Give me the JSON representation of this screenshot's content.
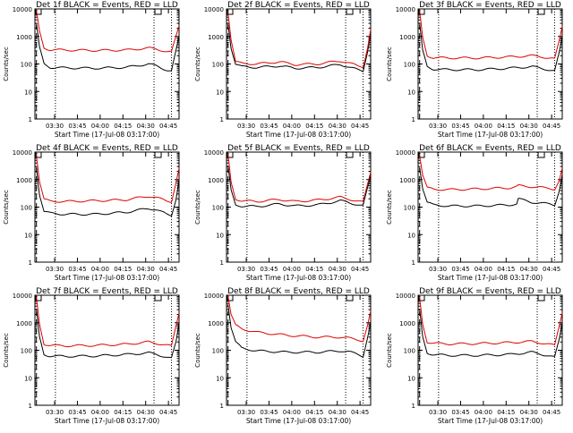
{
  "axes": {
    "ylabel": "Counts/sec",
    "xlabel": "Start Time (17-Jul-08 03:17:00)",
    "yticks": [
      "1",
      "10",
      "100",
      "1000",
      "10000"
    ],
    "xticks": [
      "03:30",
      "03:45",
      "04:00",
      "04:15",
      "04:30",
      "04:45"
    ]
  },
  "colors": {
    "events": "#000000",
    "lld": "#dd0000"
  },
  "chart_data": [
    {
      "type": "line",
      "title": "Det 1f BLACK = Events, RED = LLD",
      "x_range_minutes": [
        0,
        95
      ],
      "ylim": [
        1,
        10000
      ],
      "yscale": "log",
      "series": [
        {
          "name": "Events",
          "color": "black",
          "x": [
            1,
            3,
            6,
            10,
            20,
            40,
            60,
            75,
            80,
            87,
            90,
            93,
            95
          ],
          "values": [
            3000,
            400,
            100,
            75,
            72,
            70,
            75,
            100,
            85,
            60,
            55,
            300,
            1000
          ]
        },
        {
          "name": "LLD",
          "color": "red",
          "x": [
            1,
            3,
            6,
            10,
            20,
            40,
            60,
            75,
            80,
            87,
            90,
            93,
            95
          ],
          "values": [
            8000,
            1500,
            380,
            330,
            320,
            310,
            320,
            380,
            350,
            280,
            270,
            1000,
            2500
          ]
        }
      ],
      "markers": {
        "dashed_x": 1,
        "dotted_x": [
          13.5,
          78.5,
          90
        ]
      }
    },
    {
      "type": "line",
      "title": "Det 2f BLACK = Events, RED = LLD",
      "x_range_minutes": [
        0,
        95
      ],
      "ylim": [
        1,
        10000
      ],
      "yscale": "log",
      "series": [
        {
          "name": "Events",
          "color": "black",
          "x": [
            1,
            3,
            6,
            10,
            20,
            35,
            45,
            60,
            75,
            80,
            87,
            90,
            93,
            95
          ],
          "values": [
            3000,
            400,
            100,
            80,
            75,
            85,
            70,
            75,
            95,
            80,
            60,
            55,
            300,
            1500
          ]
        },
        {
          "name": "LLD",
          "color": "red",
          "x": [
            1,
            3,
            6,
            10,
            20,
            35,
            45,
            60,
            75,
            80,
            87,
            90,
            93,
            95
          ],
          "values": [
            8000,
            800,
            120,
            105,
            100,
            120,
            95,
            100,
            130,
            110,
            85,
            80,
            400,
            1800
          ]
        }
      ],
      "markers": {
        "dashed_x": 1,
        "dotted_x": [
          13.5,
          78.5,
          90
        ]
      }
    },
    {
      "type": "line",
      "title": "Det 3f BLACK = Events, RED = LLD",
      "x_range_minutes": [
        0,
        95
      ],
      "ylim": [
        1,
        10000
      ],
      "yscale": "log",
      "series": [
        {
          "name": "Events",
          "color": "black",
          "x": [
            1,
            3,
            6,
            10,
            20,
            40,
            60,
            75,
            80,
            87,
            90,
            93,
            95
          ],
          "values": [
            3000,
            300,
            80,
            65,
            62,
            62,
            70,
            80,
            72,
            60,
            55,
            250,
            1000
          ]
        },
        {
          "name": "LLD",
          "color": "red",
          "x": [
            1,
            3,
            6,
            10,
            20,
            40,
            60,
            75,
            80,
            87,
            90,
            93,
            95
          ],
          "values": [
            8000,
            900,
            200,
            170,
            165,
            165,
            180,
            200,
            190,
            160,
            150,
            700,
            2500
          ]
        }
      ],
      "markers": {
        "dashed_x": 1,
        "dotted_x": [
          13.5,
          78.5,
          90
        ]
      }
    },
    {
      "type": "line",
      "title": "Det 4f BLACK = Events, RED = LLD",
      "x_range_minutes": [
        0,
        95
      ],
      "ylim": [
        1,
        10000
      ],
      "yscale": "log",
      "series": [
        {
          "name": "Events",
          "color": "black",
          "x": [
            1,
            3,
            6,
            10,
            20,
            40,
            60,
            75,
            80,
            87,
            90,
            93,
            95
          ],
          "values": [
            3000,
            300,
            70,
            60,
            55,
            55,
            65,
            90,
            80,
            55,
            50,
            200,
            1000
          ]
        },
        {
          "name": "LLD",
          "color": "red",
          "x": [
            1,
            3,
            6,
            10,
            20,
            40,
            60,
            75,
            80,
            87,
            90,
            93,
            95
          ],
          "values": [
            8000,
            900,
            190,
            165,
            160,
            170,
            185,
            250,
            220,
            170,
            160,
            800,
            2500
          ]
        }
      ],
      "markers": {
        "dashed_x": 1,
        "dotted_x": [
          13.5,
          78.5,
          90
        ]
      }
    },
    {
      "type": "line",
      "title": "Det 5f BLACK = Events, RED = LLD",
      "x_range_minutes": [
        0,
        95
      ],
      "ylim": [
        1,
        10000
      ],
      "yscale": "log",
      "series": [
        {
          "name": "Events",
          "color": "black",
          "x": [
            1,
            3,
            6,
            10,
            20,
            35,
            45,
            60,
            75,
            80,
            87,
            90,
            93,
            95
          ],
          "values": [
            3000,
            400,
            120,
            110,
            105,
            130,
            110,
            120,
            170,
            150,
            120,
            110,
            500,
            1500
          ]
        },
        {
          "name": "LLD",
          "color": "red",
          "x": [
            1,
            3,
            6,
            10,
            20,
            35,
            45,
            60,
            75,
            80,
            87,
            90,
            93,
            95
          ],
          "values": [
            8000,
            800,
            200,
            170,
            160,
            190,
            160,
            180,
            230,
            200,
            160,
            150,
            700,
            2000
          ]
        }
      ],
      "markers": {
        "dashed_x": 1,
        "dotted_x": [
          13.5,
          78.5,
          90
        ]
      }
    },
    {
      "type": "line",
      "title": "Det 6f BLACK = Events, RED = LLD",
      "x_range_minutes": [
        0,
        95
      ],
      "ylim": [
        1,
        10000
      ],
      "yscale": "log",
      "series": [
        {
          "name": "Events",
          "color": "black",
          "x": [
            1,
            3,
            6,
            10,
            20,
            40,
            60,
            65,
            66,
            75,
            80,
            87,
            90,
            93,
            95
          ],
          "values": [
            3000,
            500,
            150,
            120,
            110,
            110,
            120,
            130,
            200,
            150,
            140,
            130,
            120,
            400,
            1500
          ]
        },
        {
          "name": "LLD",
          "color": "red",
          "x": [
            1,
            3,
            6,
            10,
            20,
            40,
            60,
            65,
            66,
            75,
            80,
            87,
            90,
            93,
            95
          ],
          "values": [
            8000,
            1500,
            500,
            450,
            430,
            460,
            500,
            550,
            600,
            550,
            520,
            480,
            450,
            900,
            2500
          ]
        }
      ],
      "markers": {
        "dashed_x": 1,
        "dotted_x": [
          13.5,
          78.5,
          90
        ]
      }
    },
    {
      "type": "line",
      "title": "Det 7f BLACK = Events, RED = LLD",
      "x_range_minutes": [
        0,
        95
      ],
      "ylim": [
        1,
        10000
      ],
      "yscale": "log",
      "series": [
        {
          "name": "Events",
          "color": "black",
          "x": [
            1,
            3,
            6,
            10,
            20,
            40,
            60,
            75,
            80,
            87,
            90,
            93,
            95
          ],
          "values": [
            3000,
            300,
            70,
            62,
            60,
            62,
            70,
            80,
            72,
            55,
            50,
            200,
            1000
          ]
        },
        {
          "name": "LLD",
          "color": "red",
          "x": [
            1,
            3,
            6,
            10,
            20,
            40,
            60,
            75,
            80,
            87,
            90,
            93,
            95
          ],
          "values": [
            8000,
            900,
            170,
            150,
            145,
            150,
            165,
            200,
            180,
            150,
            140,
            800,
            2500
          ]
        }
      ],
      "markers": {
        "dashed_x": 1,
        "dotted_x": [
          13.5,
          78.5,
          90
        ]
      }
    },
    {
      "type": "line",
      "title": "Det 8f BLACK = Events, RED = LLD",
      "x_range_minutes": [
        0,
        95
      ],
      "ylim": [
        1,
        10000
      ],
      "yscale": "log",
      "series": [
        {
          "name": "Events",
          "color": "black",
          "x": [
            1,
            3,
            6,
            10,
            20,
            40,
            60,
            75,
            80,
            87,
            90,
            93,
            95
          ],
          "values": [
            5000,
            700,
            200,
            120,
            95,
            85,
            85,
            95,
            90,
            70,
            60,
            300,
            1000
          ]
        },
        {
          "name": "LLD",
          "color": "red",
          "x": [
            1,
            3,
            6,
            10,
            20,
            40,
            60,
            75,
            80,
            87,
            90,
            93,
            95
          ],
          "values": [
            10000,
            2000,
            800,
            600,
            450,
            350,
            300,
            300,
            280,
            240,
            220,
            800,
            2500
          ]
        }
      ],
      "markers": {
        "dashed_x": 1,
        "dotted_x": [
          13.5,
          78.5,
          90
        ]
      }
    },
    {
      "type": "line",
      "title": "Det 9f BLACK = Events, RED = LLD",
      "x_range_minutes": [
        0,
        95
      ],
      "ylim": [
        1,
        10000
      ],
      "yscale": "log",
      "series": [
        {
          "name": "Events",
          "color": "black",
          "x": [
            1,
            3,
            6,
            10,
            20,
            40,
            60,
            75,
            80,
            87,
            90,
            93,
            95
          ],
          "values": [
            3000,
            300,
            80,
            70,
            65,
            65,
            70,
            85,
            75,
            60,
            55,
            250,
            1000
          ]
        },
        {
          "name": "LLD",
          "color": "red",
          "x": [
            1,
            3,
            6,
            10,
            20,
            40,
            60,
            75,
            80,
            87,
            90,
            93,
            95
          ],
          "values": [
            8000,
            900,
            200,
            180,
            170,
            175,
            190,
            210,
            190,
            160,
            150,
            800,
            2500
          ]
        }
      ],
      "markers": {
        "dashed_x": 1,
        "dotted_x": [
          13.5,
          78.5,
          90
        ]
      }
    }
  ]
}
